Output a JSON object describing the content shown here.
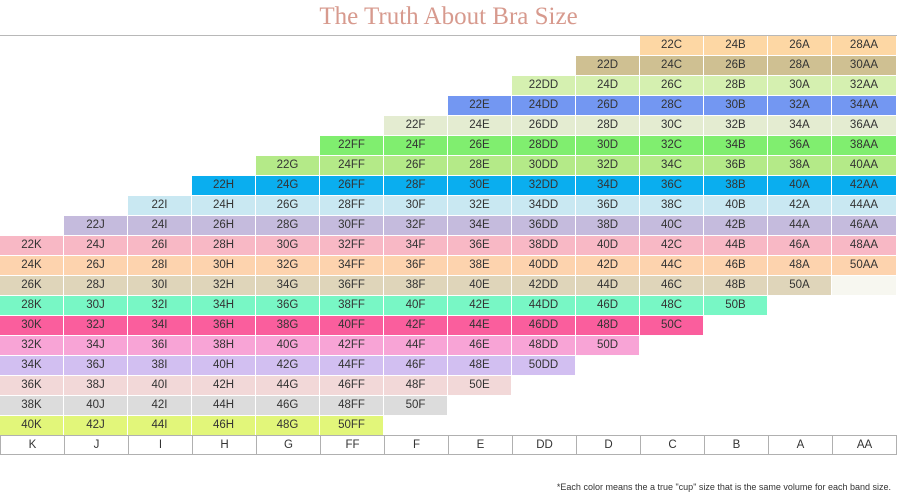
{
  "title": "The Truth About Bra Size",
  "footnote": "*Each color means the a true \"cup\" size that is the same volume for each band size.",
  "chart_data": {
    "type": "table",
    "title": "The Truth About Bra Size",
    "columns": [
      "K",
      "J",
      "I",
      "H",
      "G",
      "FF",
      "F",
      "E",
      "DD",
      "D",
      "C",
      "B",
      "A",
      "AA"
    ],
    "rows": [
      {
        "color": "#fdd7a4",
        "cells": [
          null,
          null,
          null,
          null,
          null,
          null,
          null,
          null,
          null,
          null,
          "22C",
          "24B",
          "26A",
          "28AA"
        ]
      },
      {
        "color": "#cfc092",
        "cells": [
          null,
          null,
          null,
          null,
          null,
          null,
          null,
          null,
          null,
          "22D",
          "24C",
          "26B",
          "28A",
          "30AA"
        ]
      },
      {
        "color": "#d5f0b0",
        "cells": [
          null,
          null,
          null,
          null,
          null,
          null,
          null,
          null,
          "22DD",
          "24D",
          "26C",
          "28B",
          "30A",
          "32AA"
        ]
      },
      {
        "color": "#7397f2",
        "cells": [
          null,
          null,
          null,
          null,
          null,
          null,
          null,
          "22E",
          "24DD",
          "26D",
          "28C",
          "30B",
          "32A",
          "34AA"
        ]
      },
      {
        "color": "#e4ecd1",
        "cells": [
          null,
          null,
          null,
          null,
          null,
          null,
          "22F",
          "24E",
          "26DD",
          "28D",
          "30C",
          "32B",
          "34A",
          "36AA"
        ]
      },
      {
        "color": "#80ee6f",
        "cells": [
          null,
          null,
          null,
          null,
          null,
          "22FF",
          "24F",
          "26E",
          "28DD",
          "30D",
          "32C",
          "34B",
          "36A",
          "38AA"
        ]
      },
      {
        "color": "#b4ea88",
        "cells": [
          null,
          null,
          null,
          null,
          "22G",
          "24FF",
          "26F",
          "28E",
          "30DD",
          "32D",
          "34C",
          "36B",
          "38A",
          "40AA"
        ]
      },
      {
        "color": "#0aaeef",
        "cells": [
          null,
          null,
          null,
          "22H",
          "24G",
          "26FF",
          "28F",
          "30E",
          "32DD",
          "34D",
          "36C",
          "38B",
          "40A",
          "42AA"
        ]
      },
      {
        "color": "#c9e8f2",
        "cells": [
          null,
          null,
          "22I",
          "24H",
          "26G",
          "28FF",
          "30F",
          "32E",
          "34DD",
          "36D",
          "38C",
          "40B",
          "42A",
          "44AA"
        ]
      },
      {
        "color": "#c5bbdd",
        "cells": [
          null,
          "22J",
          "24I",
          "26H",
          "28G",
          "30FF",
          "32F",
          "34E",
          "36DD",
          "38D",
          "40C",
          "42B",
          "44A",
          "46AA"
        ]
      },
      {
        "color": "#f8b8c5",
        "cells": [
          "22K",
          "24J",
          "26I",
          "28H",
          "30G",
          "32FF",
          "34F",
          "36E",
          "38DD",
          "40D",
          "42C",
          "44B",
          "46A",
          "48AA"
        ]
      },
      {
        "color": "#fdd3ae",
        "cells": [
          "24K",
          "26J",
          "28I",
          "30H",
          "32G",
          "34FF",
          "36F",
          "38E",
          "40DD",
          "42D",
          "44C",
          "46B",
          "48A",
          "50AA"
        ]
      },
      {
        "color": "#dfd5ba",
        "cells": [
          "26K",
          "28J",
          "30I",
          "32H",
          "34G",
          "36FF",
          "38F",
          "40E",
          "42DD",
          "44D",
          "46C",
          "48B",
          "50A",
          null
        ]
      },
      {
        "color": "#78f7c5",
        "cells": [
          "28K",
          "30J",
          "32I",
          "34H",
          "36G",
          "38FF",
          "40F",
          "42E",
          "44DD",
          "46D",
          "48C",
          "50B",
          null,
          null
        ]
      },
      {
        "color": "#fa5e9d",
        "cells": [
          "30K",
          "32J",
          "34I",
          "36H",
          "38G",
          "40FF",
          "42F",
          "44E",
          "46DD",
          "48D",
          "50C",
          null,
          null,
          null
        ]
      },
      {
        "color": "#f8a4d6",
        "cells": [
          "32K",
          "34J",
          "36I",
          "38H",
          "40G",
          "42FF",
          "44F",
          "46E",
          "48DD",
          "50D",
          null,
          null,
          null,
          null
        ]
      },
      {
        "color": "#d2bff1",
        "cells": [
          "34K",
          "36J",
          "38I",
          "40H",
          "42G",
          "44FF",
          "46F",
          "48E",
          "50DD",
          null,
          null,
          null,
          null,
          null
        ]
      },
      {
        "color": "#f2d8d8",
        "cells": [
          "36K",
          "38J",
          "40I",
          "42H",
          "44G",
          "46FF",
          "48F",
          "50E",
          null,
          null,
          null,
          null,
          null,
          null
        ]
      },
      {
        "color": "#dcdcdc",
        "cells": [
          "38K",
          "40J",
          "42I",
          "44H",
          "46G",
          "48FF",
          "50F",
          null,
          null,
          null,
          null,
          null,
          null,
          null
        ]
      },
      {
        "color": "#e2f67a",
        "cells": [
          "40K",
          "42J",
          "44I",
          "46H",
          "48G",
          "50FF",
          null,
          null,
          null,
          null,
          null,
          null,
          null,
          null
        ]
      }
    ],
    "empty_cell_color": "#f7f7f0"
  }
}
